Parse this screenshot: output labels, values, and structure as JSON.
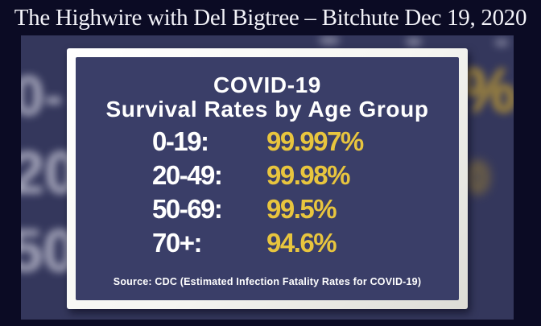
{
  "header": {
    "title": "The Highwire with Del Bigtree – Bitchute Dec 19, 2020"
  },
  "video": {
    "card": {
      "title_line1": "COVID-19",
      "title_line2": "Survival Rates by Age Group",
      "rows": [
        {
          "label": "0-19:",
          "value": "99.997%"
        },
        {
          "label": "20-49:",
          "value": "99.98%"
        },
        {
          "label": "50-69:",
          "value": "99.5%"
        },
        {
          "label": "70+:",
          "value": "94.6%"
        }
      ],
      "source": "Source: CDC (Estimated Infection Fatality Rates for COVID-19)"
    },
    "ghost": {
      "left": [
        "0-",
        "20",
        "50"
      ],
      "right": [
        "%",
        "0"
      ]
    }
  },
  "colors": {
    "page_background": "#0b0b24",
    "video_background": "#34375c",
    "panel_navy": "#3a3e68",
    "frame_white": "#f5f5f1",
    "highlight_yellow": "#e8c53e",
    "text_white": "#ffffff"
  },
  "chart_data": {
    "type": "table",
    "title": "COVID-19 Survival Rates by Age Group",
    "categories": [
      "0-19",
      "20-49",
      "50-69",
      "70+"
    ],
    "values": [
      99.997,
      99.98,
      99.5,
      94.6
    ],
    "unit": "%",
    "xlabel": "Age Group",
    "ylabel": "Survival Rate",
    "source": "Source: CDC (Estimated Infection Fatality Rates for COVID-19)"
  }
}
